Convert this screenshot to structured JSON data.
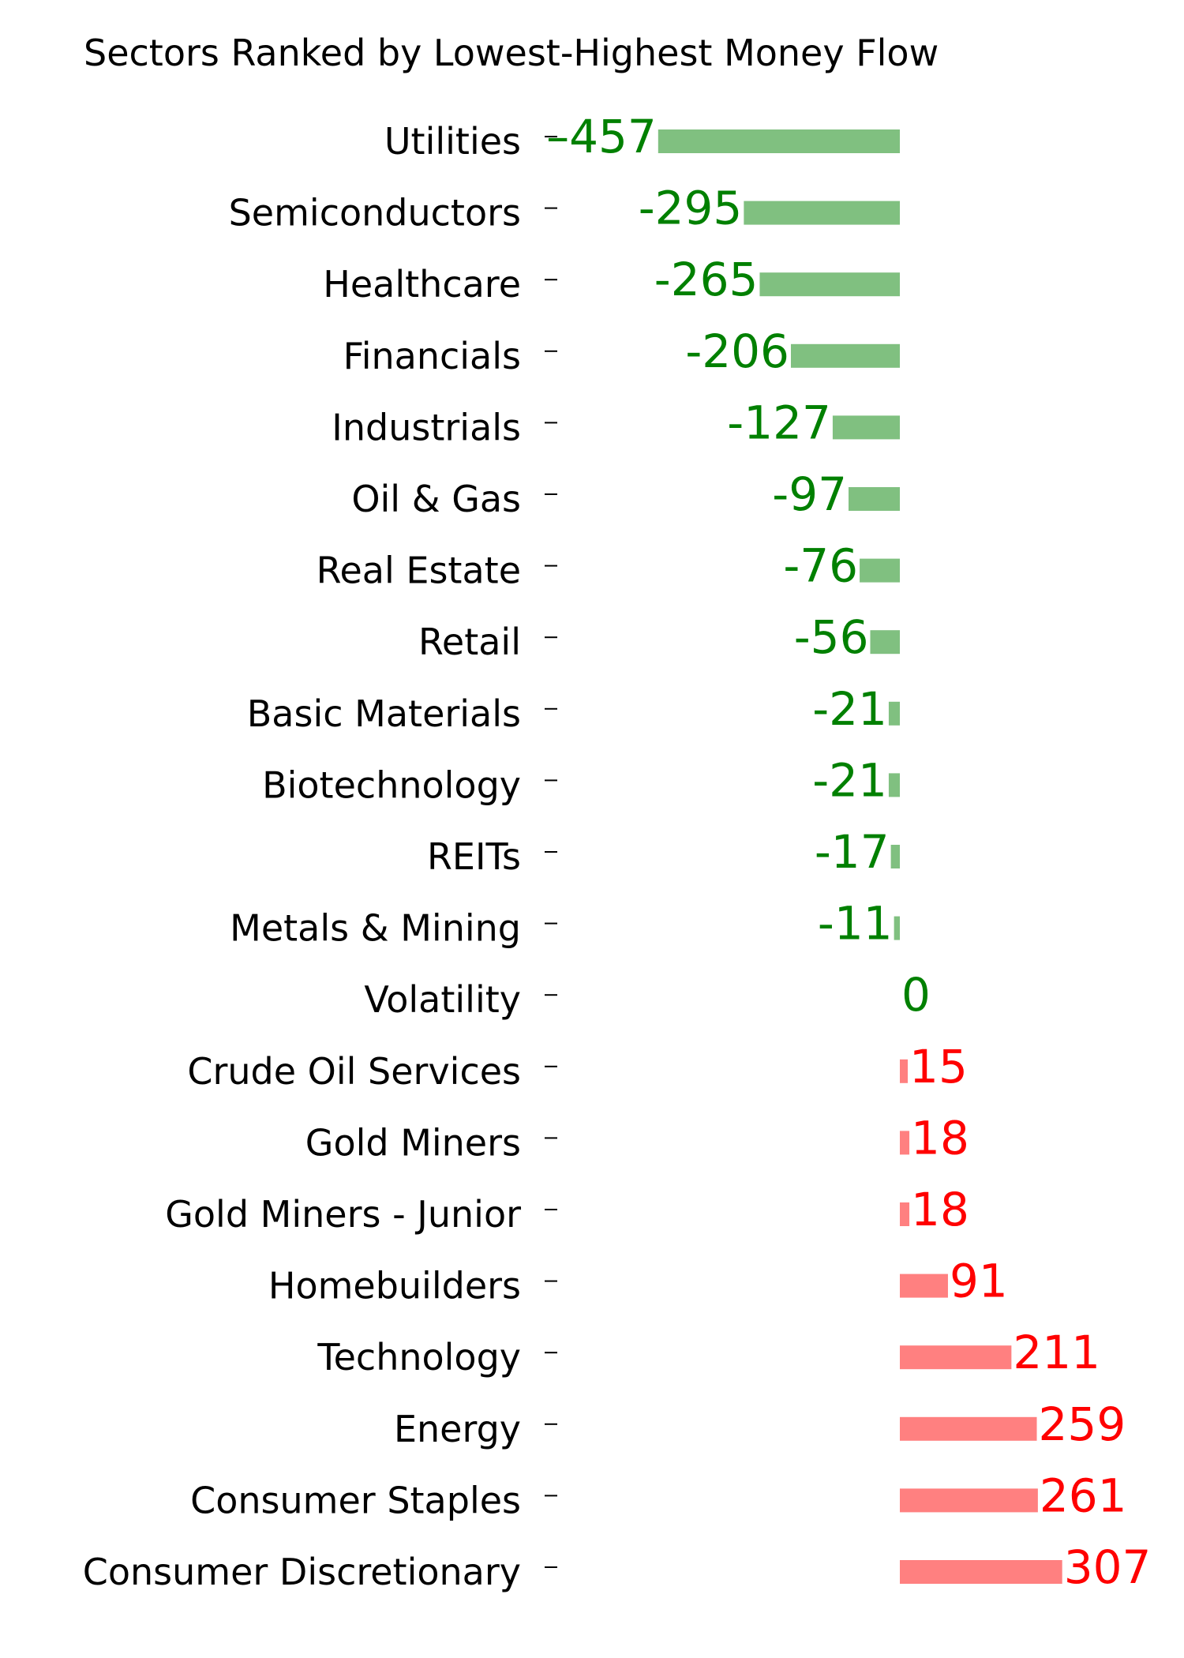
{
  "chart_data": {
    "type": "bar",
    "orientation": "horizontal",
    "title": "Sectors Ranked by Lowest-Highest Money Flow",
    "xlabel": "",
    "ylabel": "",
    "categories": [
      "Utilities",
      "Semiconductors",
      "Healthcare",
      "Financials",
      "Industrials",
      "Oil & Gas",
      "Real Estate",
      "Retail",
      "Basic Materials",
      "Biotechnology",
      "REITs",
      "Metals & Mining",
      "Volatility",
      "Crude Oil Services",
      "Gold Miners",
      "Gold Miners - Junior",
      "Homebuilders",
      "Technology",
      "Energy",
      "Consumer Staples",
      "Consumer Discretionary"
    ],
    "values": [
      -457,
      -295,
      -265,
      -206,
      -127,
      -97,
      -76,
      -56,
      -21,
      -21,
      -17,
      -11,
      0,
      15,
      18,
      18,
      91,
      211,
      259,
      261,
      307
    ],
    "value_labels": [
      "–457",
      "-295",
      "-265",
      "-206",
      "-127",
      "-97",
      "-76",
      "-56",
      "-21",
      "-21",
      "-17",
      "-11",
      "0",
      "15",
      "18",
      "18",
      "91",
      "211",
      "259",
      "261",
      "307"
    ],
    "xlim": [
      -457,
      307
    ],
    "grid": false,
    "legend": "none",
    "colors": {
      "negative_bar": "#80c080",
      "negative_text": "#008000",
      "positive_bar": "#ff8080",
      "positive_text": "#ff0000"
    }
  }
}
